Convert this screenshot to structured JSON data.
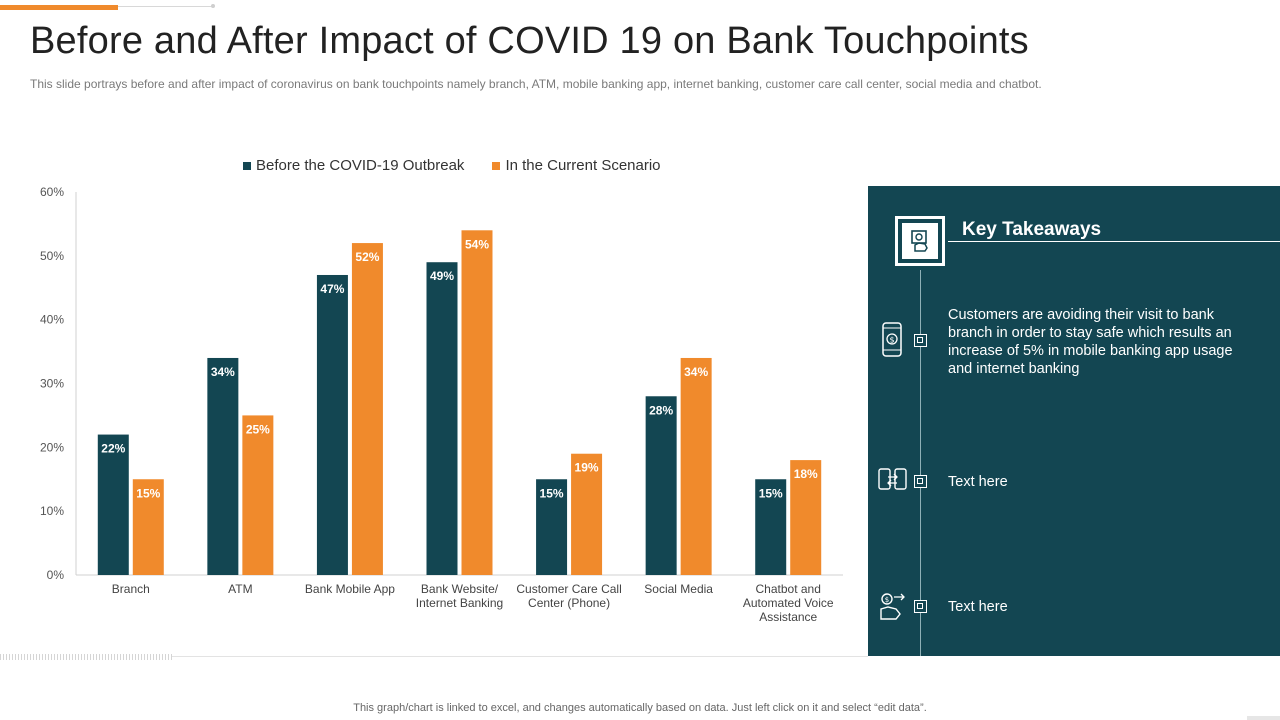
{
  "slide": {
    "title": "Before and After Impact of COVID 19 on Bank Touchpoints",
    "subtitle": "This slide portrays before  and after impact of coronavirus  on bank touchpoints namely branch, ATM, mobile banking app, internet banking, customer care call center, social media and chatbot.",
    "footer": "This graph/chart is linked to excel, and changes automatically based on data. Just left click on it and select “edit data”."
  },
  "colors": {
    "before": "#134652",
    "current": "#f08a2c",
    "accent": "#f08a2c",
    "panel": "#134652"
  },
  "chart_data": {
    "type": "bar",
    "categories": [
      "Branch",
      "ATM",
      "Bank Mobile App",
      "Bank Website/ Internet Banking",
      "Customer Care Call Center (Phone)",
      "Social Media",
      "Chatbot and Automated Voice Assistance"
    ],
    "category_lines": [
      [
        "Branch"
      ],
      [
        "ATM"
      ],
      [
        "Bank Mobile App"
      ],
      [
        "Bank Website/",
        "Internet Banking"
      ],
      [
        "Customer Care Call",
        "Center (Phone)"
      ],
      [
        "Social Media"
      ],
      [
        "Chatbot and",
        "Automated Voice",
        "Assistance"
      ]
    ],
    "series": [
      {
        "name": "Before the COVID-19 Outbreak",
        "values": [
          22,
          34,
          47,
          49,
          15,
          28,
          15
        ]
      },
      {
        "name": "In the Current Scenario",
        "values": [
          15,
          25,
          52,
          54,
          19,
          34,
          18
        ]
      }
    ],
    "ylim": [
      0,
      60
    ],
    "yticks": [
      0,
      10,
      20,
      30,
      40,
      50,
      60
    ],
    "ytick_labels": [
      "0%",
      "10%",
      "20%",
      "30%",
      "40%",
      "50%",
      "60%"
    ],
    "value_suffix": "%",
    "legend_position": "top",
    "grid": false
  },
  "takeaways": {
    "title": "Key Takeaways",
    "items": [
      {
        "icon": "mobile-banking-icon",
        "text": "Customers are avoiding their visit to bank branch in order to stay safe which results an increase of 5% in mobile banking app usage and internet banking"
      },
      {
        "icon": "money-transfer-icon",
        "text": "Text here"
      },
      {
        "icon": "online-payment-icon",
        "text": "Text here"
      }
    ]
  }
}
